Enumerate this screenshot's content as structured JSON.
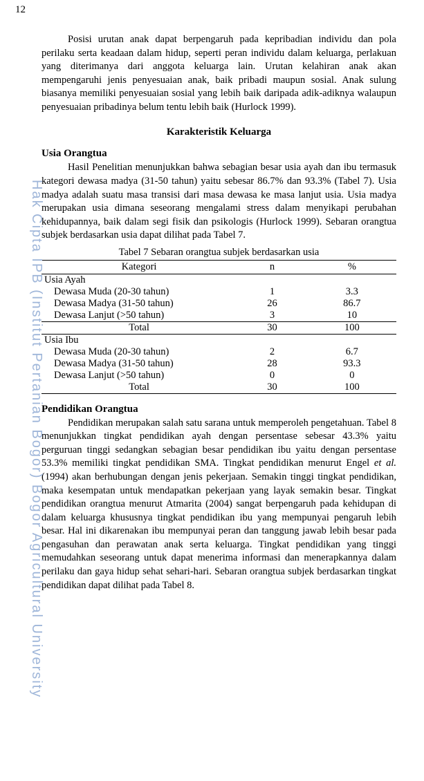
{
  "page_number": "12",
  "watermark": "Hak Cipta IPB (Institut Pertanian Bogor) Bogor Agricultural University",
  "para1": "Posisi urutan anak dapat berpengaruh pada kepribadian individu dan pola perilaku serta keadaan dalam hidup, seperti peran individu dalam keluarga, perlakuan yang diterimanya dari anggota keluarga lain. Urutan kelahiran anak akan mempengaruhi jenis penyesuaian anak, baik pribadi maupun sosial. Anak sulung biasanya memiliki penyesuaian sosial yang lebih baik daripada adik-adiknya walaupun penyesuaian pribadinya belum tentu lebih baik (Hurlock 1999).",
  "section_title": "Karakteristik Keluarga",
  "sub1_title": "Usia Orangtua",
  "para2": "Hasil Penelitian menunjukkan bahwa sebagian besar usia ayah dan ibu termasuk kategori dewasa madya (31-50 tahun) yaitu sebesar 86.7% dan  93.3% (Tabel 7). Usia madya adalah suatu masa transisi dari masa dewasa ke masa lanjut usia. Usia madya merupakan usia dimana seseorang mengalami stress dalam menyikapi perubahan kehidupannya, baik dalam segi fisik dan psikologis (Hurlock 1999). Sebaran orangtua subjek berdasarkan usia dapat dilihat pada Tabel 7.",
  "table7_caption": "Tabel 7 Sebaran orangtua subjek berdasarkan usia",
  "table7": {
    "headers": {
      "c1": "Kategori",
      "c2": "n",
      "c3": "%"
    },
    "group1_label": "Usia Ayah",
    "group1_rows": [
      {
        "label": "Dewasa Muda (20-30 tahun)",
        "n": "1",
        "pct": "3.3"
      },
      {
        "label": "Dewasa Madya (31-50 tahun)",
        "n": "26",
        "pct": "86.7"
      },
      {
        "label": "Dewasa Lanjut (>50 tahun)",
        "n": "3",
        "pct": "10"
      }
    ],
    "group1_total": {
      "label": "Total",
      "n": "30",
      "pct": "100"
    },
    "group2_label": "Usia Ibu",
    "group2_rows": [
      {
        "label": "Dewasa Muda (20-30 tahun)",
        "n": "2",
        "pct": "6.7"
      },
      {
        "label": "Dewasa Madya (31-50 tahun)",
        "n": "28",
        "pct": "93.3"
      },
      {
        "label": "Dewasa Lanjut (>50 tahun)",
        "n": "0",
        "pct": "0"
      }
    ],
    "group2_total": {
      "label": "Total",
      "n": "30",
      "pct": "100"
    }
  },
  "sub2_title": "Pendidikan Orangtua",
  "para3_a": "Pendidikan merupakan salah satu sarana untuk memperoleh pengetahuan. Tabel 8 menunjukkan tingkat pendidikan ayah dengan persentase sebesar 43.3% yaitu perguruan tinggi sedangkan sebagian besar pendidikan ibu yaitu dengan persentase 53.3% memiliki tingkat pendidikan SMA. Tingkat pendidikan menurut Engel ",
  "para3_it": "et al.",
  "para3_b": " (1994) akan berhubungan dengan jenis pekerjaan. Semakin tinggi tingkat pendidikan, maka kesempatan untuk mendapatkan pekerjaan yang layak semakin besar. Tingkat pendidikan orangtua menurut Atmarita (2004) sangat berpengaruh pada kehidupan di dalam keluarga khususnya tingkat pendidikan ibu yang mempunyai pengaruh lebih besar. Hal ini dikarenakan ibu mempunyai peran dan tanggung jawab lebih besar pada pengasuhan dan perawatan anak serta keluarga. Tingkat pendidikan yang tinggi memudahkan seseorang untuk dapat menerima informasi dan menerapkannya dalam perilaku dan gaya hidup sehat sehari-hari. Sebaran orangtua subjek berdasarkan tingkat pendidikan dapat dilihat pada Tabel 8."
}
